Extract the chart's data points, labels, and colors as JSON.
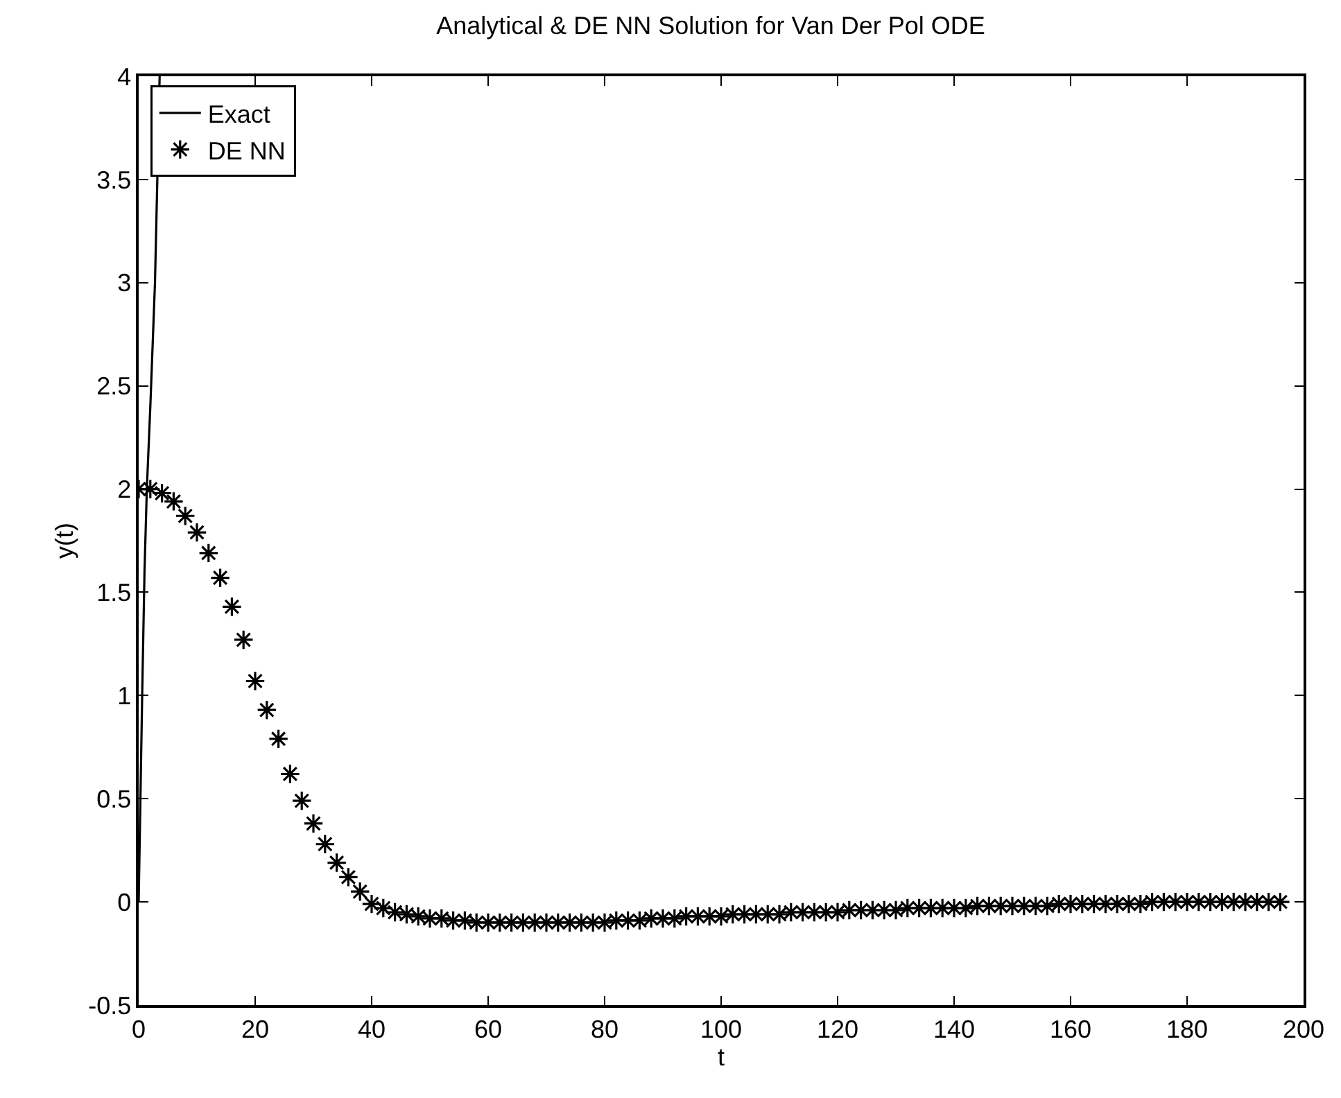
{
  "chart_data": {
    "type": "line",
    "title": "Analytical & DE NN Solution for Van Der Pol ODE",
    "xlabel": "t",
    "ylabel": "y(t)",
    "xlim": [
      0,
      200
    ],
    "xticks": [
      0,
      20,
      40,
      60,
      80,
      100,
      120,
      140,
      160,
      180,
      200
    ],
    "ylim": [
      -0.5,
      4
    ],
    "yticks": [
      -0.5,
      0,
      0.5,
      1,
      1.5,
      2,
      2.5,
      3,
      3.5,
      4
    ],
    "grid": false,
    "legend": "top left",
    "series": [
      {
        "name": "Exact",
        "color": "#000000",
        "marker": "none",
        "line_style": "solid",
        "x": [
          0,
          0.3,
          0.6,
          1.0,
          1.4,
          2.0,
          2.8,
          3.2,
          3.6
        ],
        "values": [
          0,
          0.5,
          1.0,
          1.6,
          2.0,
          2.4,
          3.0,
          3.5,
          4.0
        ]
      },
      {
        "name": "DE NN",
        "type": "scatter",
        "color": "#000000",
        "marker": "cross",
        "x": [
          0,
          2,
          4,
          6,
          8,
          10,
          12,
          14,
          16,
          18,
          20,
          22,
          24,
          26,
          28,
          30,
          32,
          34,
          36,
          38,
          40,
          42,
          44,
          46,
          48,
          50,
          52,
          54,
          56,
          58,
          60,
          62,
          64,
          66,
          68,
          70,
          72,
          74,
          76,
          78,
          80,
          82,
          84,
          86,
          88,
          90,
          92,
          94,
          96,
          98,
          100,
          102,
          104,
          106,
          108,
          110,
          112,
          114,
          116,
          118,
          120,
          122,
          124,
          126,
          128,
          130,
          132,
          134,
          136,
          138,
          140,
          142,
          144,
          146,
          148,
          150,
          152,
          154,
          156,
          158,
          160,
          162,
          164,
          166,
          168,
          170,
          172,
          174,
          176,
          178,
          180,
          182,
          184,
          186,
          188,
          190,
          192,
          194,
          196
        ],
        "values": [
          2.0,
          2.0,
          1.98,
          1.94,
          1.87,
          1.79,
          1.69,
          1.57,
          1.43,
          1.27,
          1.07,
          0.93,
          0.79,
          0.62,
          0.49,
          0.38,
          0.28,
          0.19,
          0.12,
          0.05,
          -0.01,
          -0.03,
          -0.05,
          -0.06,
          -0.07,
          -0.08,
          -0.08,
          -0.09,
          -0.09,
          -0.1,
          -0.1,
          -0.1,
          -0.1,
          -0.1,
          -0.1,
          -0.1,
          -0.1,
          -0.1,
          -0.1,
          -0.1,
          -0.1,
          -0.09,
          -0.09,
          -0.09,
          -0.08,
          -0.08,
          -0.08,
          -0.07,
          -0.07,
          -0.07,
          -0.07,
          -0.06,
          -0.06,
          -0.06,
          -0.06,
          -0.06,
          -0.05,
          -0.05,
          -0.05,
          -0.05,
          -0.05,
          -0.04,
          -0.04,
          -0.04,
          -0.04,
          -0.04,
          -0.03,
          -0.03,
          -0.03,
          -0.03,
          -0.03,
          -0.03,
          -0.02,
          -0.02,
          -0.02,
          -0.02,
          -0.02,
          -0.02,
          -0.02,
          -0.01,
          -0.01,
          -0.01,
          -0.01,
          -0.01,
          -0.01,
          -0.01,
          -0.01,
          0.0,
          0.0,
          0.0,
          0.0,
          0.0,
          0.0,
          0.0,
          0.0,
          0.0,
          0.0,
          0.0,
          0.0
        ]
      }
    ]
  }
}
